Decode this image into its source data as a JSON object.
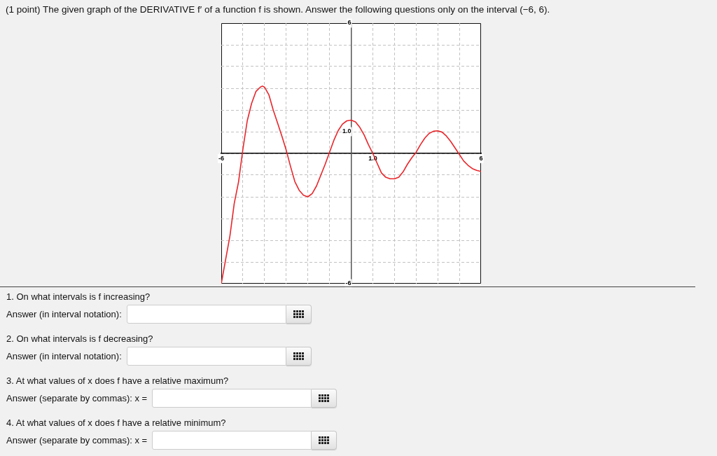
{
  "chart_data": {
    "type": "line",
    "title": "(1 point) The given graph of the DERIVATIVE f′ of a function f is shown. Answer the following questions only on the interval (−6, 6).",
    "x": [
      -6,
      -5.8,
      -5.6,
      -5.4,
      -5.2,
      -5.0,
      -4.8,
      -4.6,
      -4.4,
      -4.2,
      -4.1,
      -4.0,
      -3.8,
      -3.6,
      -3.4,
      -3.2,
      -3.0,
      -2.8,
      -2.6,
      -2.4,
      -2.2,
      -2.0,
      -1.8,
      -1.6,
      -1.4,
      -1.2,
      -1.0,
      -0.8,
      -0.6,
      -0.4,
      -0.2,
      0,
      0.2,
      0.4,
      0.6,
      0.8,
      1.0,
      1.2,
      1.4,
      1.6,
      1.8,
      2.0,
      2.2,
      2.4,
      2.6,
      2.8,
      3.0,
      3.2,
      3.4,
      3.6,
      3.8,
      4.0,
      4.2,
      4.4,
      4.6,
      4.8,
      5.0,
      5.2,
      5.4,
      5.6,
      5.8,
      6.0
    ],
    "series": [
      {
        "color": "#e8262b",
        "values": [
          -6,
          -4.9,
          -3.8,
          -2.3,
          -1.3,
          0.2,
          1.5,
          2.3,
          2.85,
          3.05,
          3.1,
          3.05,
          2.7,
          2.0,
          1.4,
          0.8,
          0.15,
          -0.6,
          -1.3,
          -1.7,
          -1.93,
          -2.0,
          -1.85,
          -1.5,
          -1.0,
          -0.5,
          0.05,
          0.6,
          1.05,
          1.35,
          1.5,
          1.53,
          1.45,
          1.2,
          0.85,
          0.4,
          0.0,
          -0.45,
          -0.9,
          -1.1,
          -1.17,
          -1.17,
          -1.1,
          -0.85,
          -0.5,
          -0.2,
          0.05,
          0.4,
          0.7,
          0.92,
          1.02,
          1.04,
          0.98,
          0.8,
          0.55,
          0.25,
          -0.05,
          -0.35,
          -0.55,
          -0.7,
          -0.78,
          -0.83
        ]
      }
    ],
    "xlim": [
      -6,
      6
    ],
    "ylim": [
      -6,
      6
    ],
    "xticks": [
      -6,
      {
        "value": -5,
        "label": null
      },
      {
        "value": -4,
        "label": null
      },
      {
        "value": -3,
        "label": null
      },
      {
        "value": -2,
        "label": null
      },
      {
        "value": -1,
        "label": null
      },
      {
        "value": 0,
        "label": null
      },
      {
        "value": 1,
        "label": "1.0"
      },
      {
        "value": 2,
        "label": null
      },
      {
        "value": 3,
        "label": null
      },
      {
        "value": 4,
        "label": null
      },
      {
        "value": 5,
        "label": null
      },
      6
    ],
    "yticks": [
      -6,
      {
        "value": -5,
        "label": null
      },
      {
        "value": -4,
        "label": null
      },
      {
        "value": -3,
        "label": null
      },
      {
        "value": -2,
        "label": null
      },
      {
        "value": -1,
        "label": null
      },
      {
        "value": 0,
        "label": null
      },
      {
        "value": 1,
        "label": "1.0"
      },
      {
        "value": 2,
        "label": null
      },
      {
        "value": 3,
        "label": null
      },
      {
        "value": 4,
        "label": null
      },
      {
        "value": 5,
        "label": null
      },
      6
    ],
    "grid": true,
    "annotations": [
      "1. On what intervals is f increasing?",
      "Answer (in interval notation):",
      "2. On what intervals is f decreasing?",
      "Answer (in interval notation):",
      "3. At what values of x does f have a relative maximum?",
      "Answer (separate by commas): x =",
      "4. At what values of x does f have a relative minimum?",
      "Answer (separate by commas): x ="
    ]
  }
}
